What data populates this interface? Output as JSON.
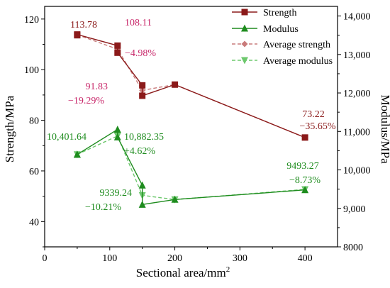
{
  "chart_data": {
    "type": "line",
    "xlabel": "Sectional area/mm",
    "xlabel_superscript": "2",
    "ylabel_left": "Strength/MPa",
    "ylabel_right": "Modulus/MPa",
    "xlim": [
      0,
      450
    ],
    "ylim_left": [
      30,
      125
    ],
    "ylim_right": [
      8000,
      14250
    ],
    "x_ticks": [
      "0",
      "100",
      "200",
      "300",
      "400"
    ],
    "y_left_ticks": [
      "40",
      "60",
      "80",
      "100",
      "120"
    ],
    "y_right_ticks": [
      "8000",
      "9,000",
      "10,000",
      "11,000",
      "12,000",
      "13,000",
      "14,000"
    ],
    "grid": false,
    "legend_position": "top-right",
    "colors": {
      "strength": "#8b1a1a",
      "strength_label": "#c8286a",
      "avg_strength": "#c97b7b",
      "modulus": "#1e8c1e",
      "avg_modulus": "#6dc86d"
    },
    "series": [
      {
        "name": "Strength",
        "axis": "left",
        "marker": "square",
        "line": "solid",
        "x": [
          50,
          50,
          112,
          112,
          150,
          150,
          200,
          400
        ],
        "y": [
          113.6,
          113.9,
          109.5,
          106.7,
          93.8,
          89.7,
          94.1,
          73.2
        ]
      },
      {
        "name": "Modulus",
        "axis": "right",
        "marker": "triangle-up",
        "line": "solid",
        "x": [
          50,
          50,
          112,
          112,
          150,
          150,
          200,
          400
        ],
        "y": [
          10400,
          10400,
          11050,
          10850,
          9600,
          9100,
          9230,
          9480
        ]
      },
      {
        "name": "Average strength",
        "axis": "left",
        "marker": "diamond",
        "line": "dashed",
        "x": [
          50,
          112,
          150,
          200,
          400
        ],
        "y": [
          113.78,
          108.11,
          91.83,
          94.1,
          73.22
        ]
      },
      {
        "name": "Average modulus",
        "axis": "right",
        "marker": "triangle-down",
        "line": "dashed",
        "x": [
          50,
          112,
          150,
          200,
          400
        ],
        "y": [
          10401.64,
          10882.35,
          9339.24,
          9230,
          9493.27
        ]
      }
    ],
    "annotations": [
      {
        "text": "113.78",
        "color_key": "strength"
      },
      {
        "text": "108.11",
        "color_key": "strength_label"
      },
      {
        "text": "−4.98%",
        "color_key": "strength_label"
      },
      {
        "text": "91.83",
        "color_key": "strength_label"
      },
      {
        "text": "−19.29%",
        "color_key": "strength_label"
      },
      {
        "text": "73.22",
        "color_key": "strength"
      },
      {
        "text": "−35.65%",
        "color_key": "strength"
      },
      {
        "text": "10,401.64",
        "color_key": "modulus"
      },
      {
        "text": "10,882.35",
        "color_key": "modulus"
      },
      {
        "text": "+4.62%",
        "color_key": "modulus"
      },
      {
        "text": "9339.24",
        "color_key": "modulus"
      },
      {
        "text": "−10.21%",
        "color_key": "modulus"
      },
      {
        "text": "9493.27",
        "color_key": "modulus"
      },
      {
        "text": "−8.73%",
        "color_key": "modulus"
      }
    ]
  }
}
